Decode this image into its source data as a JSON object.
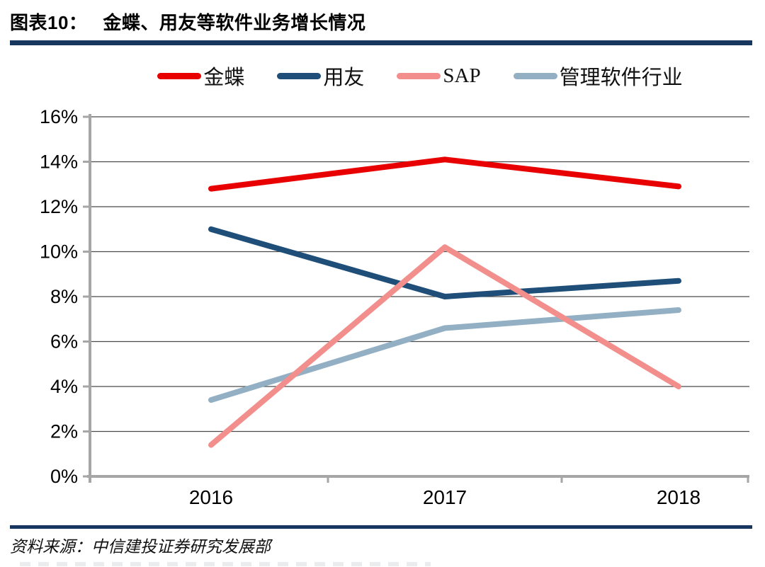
{
  "header": {
    "tag": "图表10：",
    "title": "金蝶、用友等软件业务增长情况"
  },
  "footer": {
    "source": "资料来源：中信建投证券研究发展部"
  },
  "colors": {
    "accent_bar": "#17375e",
    "gridline": "#4a4a4a",
    "axis": "#a6a6a6",
    "text": "#000000"
  },
  "chart_data": {
    "type": "line",
    "title": "金蝶、用友等软件业务增长情况",
    "categories": [
      "2016",
      "2017",
      "2018"
    ],
    "series": [
      {
        "name": "金蝶",
        "color": "#e80000",
        "values": [
          12.8,
          14.1,
          12.9
        ]
      },
      {
        "name": "用友",
        "color": "#1f4e79",
        "values": [
          11.0,
          8.0,
          8.7
        ]
      },
      {
        "name": "SAP",
        "color": "#f28f8c",
        "values": [
          1.4,
          10.2,
          4.0
        ]
      },
      {
        "name": "管理软件行业",
        "color": "#92afc4",
        "values": [
          3.4,
          6.6,
          7.4
        ]
      }
    ],
    "xlabel": "",
    "ylabel": "",
    "ylim": [
      0,
      16
    ],
    "ytick_step": 2,
    "ytick_suffix": "%",
    "grid": true,
    "legend_position": "top",
    "line_width": 8
  }
}
